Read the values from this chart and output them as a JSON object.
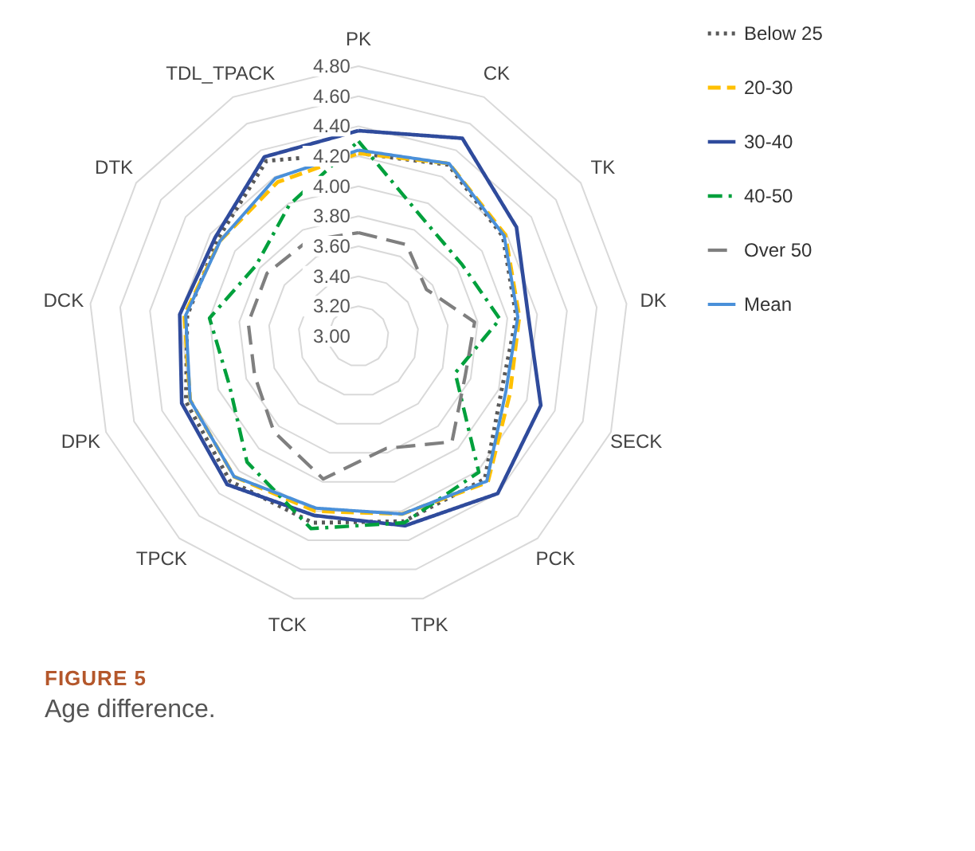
{
  "chart_data": {
    "type": "radar",
    "categories": [
      "PK",
      "CK",
      "TK",
      "DK",
      "SECK",
      "PCK",
      "TPK",
      "TCK",
      "TPCK",
      "DPK",
      "DCK",
      "DTK",
      "TDL_TPACK"
    ],
    "series": [
      {
        "name": "Below 25",
        "color": "#595959",
        "line_style": "dotted",
        "values": [
          4.22,
          4.29,
          4.17,
          4.06,
          4.02,
          4.27,
          4.27,
          4.28,
          4.29,
          4.23,
          4.15,
          4.14,
          4.32
        ]
      },
      {
        "name": "20-30",
        "color": "#ffc000",
        "line_style": "dashed",
        "values": [
          4.22,
          4.3,
          4.19,
          4.08,
          4.08,
          4.3,
          4.22,
          4.2,
          4.25,
          4.2,
          4.17,
          4.12,
          4.16
        ]
      },
      {
        "name": "30-40",
        "color": "#2f4b9c",
        "line_style": "solid",
        "values": [
          4.37,
          4.49,
          4.28,
          4.14,
          4.3,
          4.4,
          4.3,
          4.23,
          4.32,
          4.26,
          4.2,
          4.16,
          4.35
        ]
      },
      {
        "name": "40-50",
        "color": "#00a03c",
        "line_style": "dashdot",
        "values": [
          4.3,
          3.9,
          3.84,
          3.95,
          3.69,
          4.21,
          4.28,
          4.32,
          4.12,
          3.92,
          4.0,
          3.83,
          3.99
        ]
      },
      {
        "name": "Over 50",
        "color": "#7f7f7f",
        "line_style": "longdash",
        "values": [
          3.69,
          3.69,
          3.55,
          3.78,
          3.76,
          3.94,
          3.77,
          3.98,
          3.85,
          3.74,
          3.74,
          3.74,
          3.72
        ]
      },
      {
        "name": "Mean",
        "color": "#4a90d9",
        "line_style": "solid",
        "values": [
          4.24,
          4.3,
          4.18,
          4.07,
          4.05,
          4.29,
          4.22,
          4.18,
          4.25,
          4.2,
          4.16,
          4.12,
          4.19
        ]
      }
    ],
    "ylim": [
      3.0,
      4.8
    ],
    "yticks": [
      {
        "value": 3.0,
        "label": "3.00"
      },
      {
        "value": 3.2,
        "label": "3.20"
      },
      {
        "value": 3.4,
        "label": "3.40"
      },
      {
        "value": 3.6,
        "label": "3.60"
      },
      {
        "value": 3.8,
        "label": "3.80"
      },
      {
        "value": 4.0,
        "label": "4.00"
      },
      {
        "value": 4.2,
        "label": "4.20"
      },
      {
        "value": 4.4,
        "label": "4.40"
      },
      {
        "value": 4.6,
        "label": "4.60"
      },
      {
        "value": 4.8,
        "label": "4.80"
      }
    ],
    "grid": true,
    "legend": "right",
    "annotations": [
      "FIGURE 5",
      "Age difference."
    ]
  }
}
